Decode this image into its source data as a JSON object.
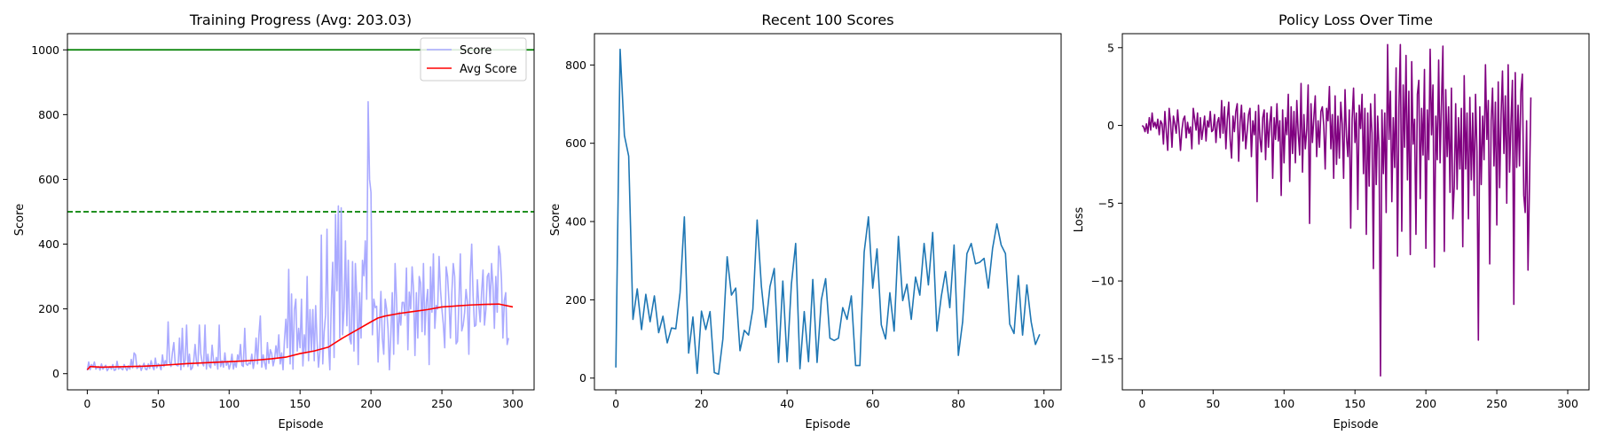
{
  "chart_data": [
    {
      "type": "line",
      "title": "Training Progress (Avg: 203.03)",
      "xlabel": "Episode",
      "ylabel": "Score",
      "xlim": [
        -14,
        315
      ],
      "ylim": [
        -50,
        1050
      ],
      "xticks": [
        0,
        50,
        100,
        150,
        200,
        250,
        300
      ],
      "yticks": [
        0,
        200,
        400,
        600,
        800,
        1000
      ],
      "legend": "top-right",
      "hlines": [
        {
          "y": 1000,
          "color": "#008000",
          "style": "solid"
        },
        {
          "y": 500,
          "color": "#008000",
          "style": "dashed"
        }
      ],
      "series": [
        {
          "name": "Score",
          "color": "#aaaaff",
          "x_start": 0,
          "values": [
            10,
            36,
            12,
            28,
            20,
            36,
            14,
            18,
            22,
            11,
            30,
            14,
            20,
            26,
            9,
            16,
            22,
            14,
            28,
            10,
            12,
            38,
            14,
            20,
            16,
            12,
            28,
            18,
            10,
            24,
            14,
            44,
            18,
            64,
            58,
            16,
            20,
            26,
            10,
            22,
            32,
            14,
            12,
            30,
            16,
            40,
            22,
            12,
            48,
            18,
            30,
            26,
            12,
            58,
            22,
            40,
            28,
            160,
            36,
            22,
            64,
            96,
            30,
            26,
            24,
            110,
            12,
            140,
            22,
            42,
            150,
            22,
            60,
            12,
            18,
            38,
            90,
            36,
            24,
            150,
            62,
            34,
            24,
            150,
            14,
            60,
            24,
            18,
            88,
            40,
            26,
            50,
            14,
            150,
            22,
            40,
            20,
            64,
            26,
            38,
            14,
            30,
            60,
            14,
            36,
            20,
            58,
            40,
            90,
            26,
            22,
            140,
            30,
            26,
            34,
            30,
            60,
            16,
            40,
            110,
            30,
            120,
            178,
            20,
            58,
            34,
            14,
            96,
            32,
            74,
            62,
            24,
            44,
            86,
            52,
            120,
            30,
            64,
            12,
            104,
            168,
            80,
            322,
            30,
            246,
            14,
            198,
            230,
            70,
            140,
            80,
            230,
            24,
            120,
            64,
            300,
            40,
            198,
            68,
            198,
            40,
            210,
            100,
            20,
            70,
            428,
            30,
            130,
            180,
            446,
            92,
            12,
            214,
            344,
            50,
            492,
            256,
            518,
            110,
            512,
            120,
            200,
            410,
            148,
            350,
            108,
            92,
            346,
            70,
            340,
            236,
            28,
            250,
            110,
            350,
            302,
            410,
            230,
            840,
            600,
            560,
            120,
            230,
            204,
            208,
            36,
            150,
            254,
            110,
            60,
            230,
            200,
            140,
            12,
            120,
            250,
            60,
            340,
            230,
            92,
            190,
            150,
            220,
            220,
            180,
            326,
            74,
            252,
            200,
            330,
            260,
            56,
            250,
            110,
            300,
            280,
            130,
            340,
            120,
            220,
            260,
            28,
            330,
            190,
            370,
            140,
            210,
            200,
            362,
            260,
            200,
            152,
            80,
            330,
            300,
            224,
            110,
            250,
            340,
            300,
            92,
            100,
            220,
            370,
            132,
            150,
            188,
            260,
            220,
            60,
            300,
            400,
            240,
            146,
            150,
            290,
            210,
            160,
            252,
            320,
            150,
            198,
            300,
            310,
            212,
            340,
            270,
            140,
            300,
            190,
            394,
            370,
            290,
            110,
            226,
            250,
            90,
            110
          ]
        },
        {
          "name": "Avg Score",
          "color": "#ff0000",
          "x": [
            0,
            2,
            10,
            20,
            30,
            40,
            50,
            60,
            70,
            80,
            90,
            100,
            110,
            120,
            130,
            140,
            150,
            160,
            170,
            180,
            190,
            200,
            205,
            210,
            220,
            230,
            240,
            250,
            260,
            270,
            280,
            290,
            300
          ],
          "values": [
            12,
            22,
            20,
            21,
            22,
            23,
            25,
            28,
            31,
            33,
            35,
            37,
            39,
            42,
            46,
            51,
            62,
            70,
            82,
            110,
            135,
            160,
            172,
            178,
            186,
            192,
            198,
            206,
            209,
            212,
            214,
            215,
            206
          ]
        }
      ]
    },
    {
      "type": "line",
      "title": "Recent 100 Scores",
      "xlabel": "Episode",
      "ylabel": "Score",
      "xlim": [
        -5,
        104
      ],
      "ylim": [
        -30,
        880
      ],
      "xticks": [
        0,
        20,
        40,
        60,
        80,
        100
      ],
      "yticks": [
        0,
        200,
        400,
        600,
        800
      ],
      "series": [
        {
          "name": "",
          "color": "#1f77b4",
          "x_start": 0,
          "values": [
            27,
            840,
            620,
            567,
            150,
            228,
            124,
            214,
            144,
            210,
            116,
            158,
            90,
            128,
            126,
            218,
            412,
            64,
            156,
            12,
            171,
            124,
            170,
            14,
            10,
            100,
            310,
            212,
            230,
            70,
            122,
            110,
            176,
            404,
            234,
            130,
            234,
            280,
            40,
            248,
            42,
            240,
            344,
            24,
            170,
            42,
            252,
            40,
            200,
            254,
            102,
            96,
            102,
            180,
            150,
            210,
            32,
            32,
            322,
            412,
            230,
            330,
            136,
            100,
            218,
            120,
            362,
            198,
            240,
            150,
            258,
            212,
            344,
            238,
            372,
            120,
            208,
            272,
            180,
            340,
            58,
            144,
            318,
            344,
            292,
            296,
            306,
            230,
            332,
            394,
            340,
            318,
            138,
            114,
            262,
            110,
            238,
            144,
            86,
            112
          ]
        }
      ]
    },
    {
      "type": "line",
      "title": "Policy Loss Over Time",
      "xlabel": "Episode",
      "ylabel": "Loss",
      "xlim": [
        -14,
        315
      ],
      "ylim": [
        -17,
        5.9
      ],
      "xticks": [
        0,
        50,
        100,
        150,
        200,
        250,
        300
      ],
      "yticks": [
        5,
        0,
        -5,
        -10,
        -15
      ],
      "series": [
        {
          "name": "",
          "color": "#800080",
          "x_start": 0,
          "values": [
            0.0,
            -0.1,
            -0.4,
            0.1,
            -0.5,
            0.5,
            -0.3,
            0.8,
            -0.1,
            0.2,
            -0.2,
            0.4,
            -0.6,
            0.3,
            0.1,
            -1.2,
            0.9,
            -0.4,
            -1.6,
            1.1,
            0.2,
            -1.4,
            0.6,
            0.1,
            -0.5,
            1.0,
            -0.2,
            -1.6,
            -0.3,
            0.4,
            0.6,
            -0.8,
            0.2,
            -0.5,
            -0.1,
            -1.5,
            1.1,
            0.4,
            -0.3,
            0.8,
            -1.2,
            0.5,
            -0.9,
            -0.2,
            0.6,
            -1.0,
            0.3,
            -0.1,
            0.9,
            -0.4,
            -0.3,
            0.7,
            -1.1,
            0.2,
            0.5,
            -0.8,
            1.6,
            -0.5,
            1.2,
            -1.5,
            0.4,
            1.5,
            -0.9,
            -2.1,
            0.6,
            -0.4,
            0.9,
            1.4,
            -2.3,
            0.2,
            1.3,
            -1.0,
            0.8,
            -1.5,
            -0.4,
            0.7,
            1.1,
            -2.0,
            0.3,
            -0.6,
            0.9,
            -4.9,
            1.3,
            -0.8,
            -1.7,
            0.5,
            1.0,
            -2.2,
            0.8,
            -1.4,
            0.2,
            1.2,
            -3.4,
            0.5,
            -0.9,
            1.4,
            -1.0,
            0.3,
            -4.5,
            1.0,
            -2.4,
            0.5,
            -0.6,
            2.0,
            -3.6,
            1.2,
            -1.8,
            0.9,
            -2.4,
            1.6,
            -0.5,
            -1.9,
            2.7,
            -3.0,
            0.7,
            -1.5,
            -0.3,
            2.6,
            -6.3,
            1.4,
            -1.1,
            0.5,
            1.9,
            -2.0,
            0.3,
            -1.4,
            0.9,
            1.2,
            0.0,
            -2.8,
            1.1,
            0.3,
            2.5,
            -1.5,
            0.7,
            -3.4,
            1.9,
            -2.5,
            0.6,
            -2.1,
            1.5,
            0.1,
            -3.4,
            2.3,
            -0.7,
            -2.0,
            1.0,
            -6.6,
            0.4,
            2.4,
            -1.1,
            0.8,
            -5.4,
            1.3,
            -0.2,
            2.0,
            -3.1,
            1.1,
            -7.0,
            0.8,
            -3.9,
            1.4,
            -0.5,
            -9.2,
            2.0,
            -3.8,
            0.6,
            -1.5,
            -16.1,
            1.0,
            -3.1,
            0.8,
            -5.6,
            5.2,
            -0.9,
            2.2,
            -4.9,
            0.5,
            -2.7,
            3.7,
            -8.4,
            1.2,
            5.2,
            -6.8,
            2.6,
            -1.4,
            4.5,
            -3.5,
            2.2,
            -8.3,
            4.1,
            -1.2,
            0.4,
            -7.0,
            2.0,
            2.9,
            -4.7,
            1.1,
            -1.9,
            3.6,
            -7.9,
            1.0,
            -2.2,
            4.9,
            -0.6,
            2.6,
            -9.1,
            0.6,
            -2.2,
            4.2,
            -2.4,
            1.5,
            5.1,
            -8.1,
            2.3,
            -2.0,
            1.2,
            -4.3,
            2.4,
            -6.0,
            -3.9,
            1.4,
            -4.1,
            0.5,
            -2.8,
            1.1,
            -7.8,
            3.2,
            -2.8,
            0.8,
            -6.0,
            1.8,
            -3.5,
            0.8,
            -4.5,
            2.0,
            -1.7,
            -13.8,
            1.2,
            -3.8,
            0.6,
            -2.2,
            3.9,
            -0.9,
            1.6,
            -8.9,
            0.3,
            2.4,
            -2.6,
            1.5,
            -6.4,
            2.8,
            -4.0,
            0.7,
            3.5,
            -1.8,
            1.9,
            -5.0,
            3.9,
            -3.0,
            0.2,
            2.9,
            -11.5,
            3.4,
            -2.7,
            1.3,
            -2.6,
            2.2,
            3.3,
            -4.5,
            -5.6,
            0.3,
            -9.3,
            -4.0,
            1.8
          ]
        }
      ]
    }
  ]
}
